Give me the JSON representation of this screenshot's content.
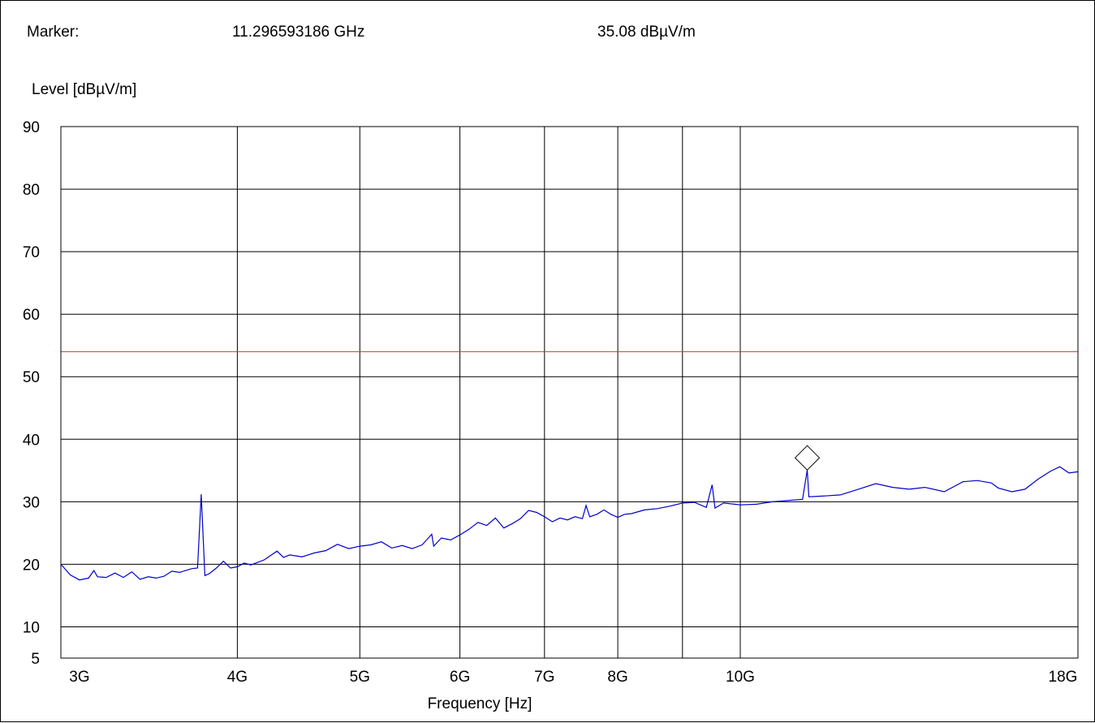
{
  "header": {
    "marker_label": "Marker:",
    "marker_frequency": "11.296593186 GHz",
    "marker_level": "35.08 dBµV/m"
  },
  "chart_data": {
    "type": "line",
    "title": "",
    "xlabel": "Frequency [Hz]",
    "ylabel": "Level [dBµV/m]",
    "x_scale": "log",
    "xlim": [
      2.9,
      18.5
    ],
    "ylim": [
      5,
      90
    ],
    "x_ticks": [
      {
        "value": 3,
        "label": "3G"
      },
      {
        "value": 4,
        "label": "4G"
      },
      {
        "value": 5,
        "label": "5G"
      },
      {
        "value": 6,
        "label": "6G"
      },
      {
        "value": 7,
        "label": "7G"
      },
      {
        "value": 8,
        "label": "8G"
      },
      {
        "value": 10,
        "label": "10G"
      },
      {
        "value": 18,
        "label": "18G"
      }
    ],
    "x_gridlines": [
      4,
      5,
      6,
      7,
      8,
      9,
      10
    ],
    "y_ticks": [
      5,
      10,
      20,
      30,
      40,
      50,
      60,
      70,
      80,
      90
    ],
    "y_gridlines": [
      10,
      20,
      30,
      40,
      50,
      60,
      70,
      80
    ],
    "grid": true,
    "limit_line": {
      "value": 54,
      "color": "#e03030"
    },
    "trace_color": "#0000cc",
    "marker": {
      "x": 11.2966,
      "y": 35.08,
      "shape": "diamond"
    },
    "series": [
      {
        "points": [
          [
            2.9,
            20.0
          ],
          [
            2.95,
            18.3
          ],
          [
            3.0,
            17.5
          ],
          [
            3.05,
            17.8
          ],
          [
            3.08,
            19.0
          ],
          [
            3.1,
            18.0
          ],
          [
            3.15,
            17.9
          ],
          [
            3.2,
            18.6
          ],
          [
            3.25,
            17.9
          ],
          [
            3.3,
            18.8
          ],
          [
            3.35,
            17.6
          ],
          [
            3.4,
            18.0
          ],
          [
            3.45,
            17.8
          ],
          [
            3.5,
            18.1
          ],
          [
            3.55,
            18.9
          ],
          [
            3.6,
            18.7
          ],
          [
            3.68,
            19.3
          ],
          [
            3.72,
            19.4
          ],
          [
            3.745,
            31.2
          ],
          [
            3.77,
            18.2
          ],
          [
            3.8,
            18.5
          ],
          [
            3.85,
            19.4
          ],
          [
            3.9,
            20.5
          ],
          [
            3.95,
            19.4
          ],
          [
            4.0,
            19.6
          ],
          [
            4.05,
            20.2
          ],
          [
            4.1,
            19.9
          ],
          [
            4.2,
            20.7
          ],
          [
            4.3,
            22.1
          ],
          [
            4.35,
            21.1
          ],
          [
            4.4,
            21.5
          ],
          [
            4.5,
            21.2
          ],
          [
            4.6,
            21.8
          ],
          [
            4.7,
            22.2
          ],
          [
            4.8,
            23.2
          ],
          [
            4.9,
            22.5
          ],
          [
            5.0,
            22.9
          ],
          [
            5.1,
            23.1
          ],
          [
            5.2,
            23.6
          ],
          [
            5.3,
            22.6
          ],
          [
            5.4,
            23.0
          ],
          [
            5.5,
            22.5
          ],
          [
            5.6,
            23.1
          ],
          [
            5.7,
            24.8
          ],
          [
            5.72,
            22.9
          ],
          [
            5.8,
            24.2
          ],
          [
            5.9,
            23.9
          ],
          [
            6.0,
            24.7
          ],
          [
            6.1,
            25.6
          ],
          [
            6.2,
            26.7
          ],
          [
            6.3,
            26.2
          ],
          [
            6.4,
            27.4
          ],
          [
            6.5,
            25.8
          ],
          [
            6.6,
            26.5
          ],
          [
            6.7,
            27.3
          ],
          [
            6.8,
            28.6
          ],
          [
            6.9,
            28.3
          ],
          [
            7.0,
            27.6
          ],
          [
            7.1,
            26.8
          ],
          [
            7.2,
            27.4
          ],
          [
            7.3,
            27.1
          ],
          [
            7.4,
            27.6
          ],
          [
            7.5,
            27.3
          ],
          [
            7.55,
            29.4
          ],
          [
            7.6,
            27.6
          ],
          [
            7.7,
            28.0
          ],
          [
            7.8,
            28.7
          ],
          [
            7.9,
            28.0
          ],
          [
            8.0,
            27.5
          ],
          [
            8.1,
            28.0
          ],
          [
            8.2,
            28.1
          ],
          [
            8.4,
            28.7
          ],
          [
            8.6,
            28.9
          ],
          [
            8.8,
            29.3
          ],
          [
            9.0,
            29.8
          ],
          [
            9.2,
            29.9
          ],
          [
            9.4,
            29.1
          ],
          [
            9.5,
            32.7
          ],
          [
            9.55,
            29.0
          ],
          [
            9.7,
            29.8
          ],
          [
            9.9,
            29.6
          ],
          [
            10.0,
            29.5
          ],
          [
            10.3,
            29.6
          ],
          [
            10.6,
            30.0
          ],
          [
            10.9,
            30.2
          ],
          [
            11.2,
            30.4
          ],
          [
            11.2966,
            35.08
          ],
          [
            11.33,
            30.8
          ],
          [
            11.6,
            30.9
          ],
          [
            12.0,
            31.1
          ],
          [
            12.4,
            32.0
          ],
          [
            12.8,
            32.9
          ],
          [
            13.2,
            32.3
          ],
          [
            13.6,
            32.0
          ],
          [
            14.0,
            32.3
          ],
          [
            14.5,
            31.6
          ],
          [
            15.0,
            33.2
          ],
          [
            15.4,
            33.4
          ],
          [
            15.8,
            33.0
          ],
          [
            16.0,
            32.2
          ],
          [
            16.4,
            31.6
          ],
          [
            16.8,
            32.0
          ],
          [
            17.2,
            33.6
          ],
          [
            17.6,
            34.9
          ],
          [
            17.9,
            35.6
          ],
          [
            18.2,
            34.6
          ],
          [
            18.5,
            34.8
          ]
        ]
      }
    ]
  }
}
